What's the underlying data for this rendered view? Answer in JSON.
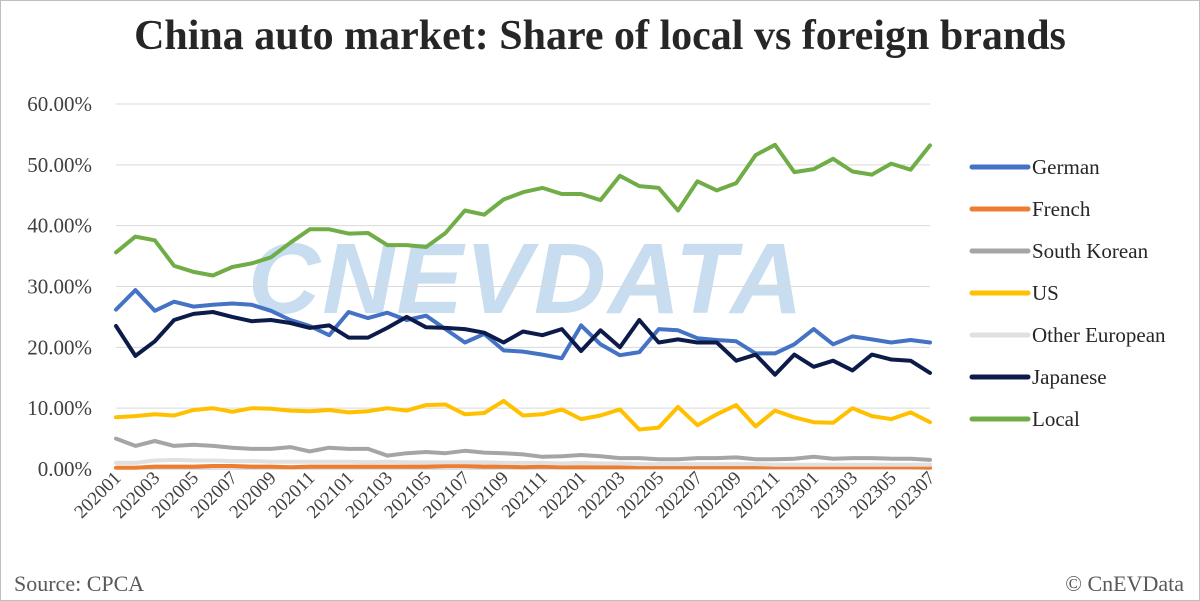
{
  "title": "China auto market: Share of local vs foreign brands",
  "watermark": "CNEVDATA",
  "source": "Source: CPCA",
  "copyright": "© CnEVData",
  "colors": {
    "German": "#4472c4",
    "French": "#ed7d31",
    "South Korean": "#a5a5a5",
    "US": "#ffc000",
    "Other European": "#e0e0e0",
    "Japanese": "#0d1b4a",
    "Local": "#70ad47"
  },
  "chart_data": {
    "type": "line",
    "title": "China auto market: Share of local vs foreign brands",
    "xlabel": "",
    "ylabel": "",
    "ylim": [
      0,
      0.6
    ],
    "yticks": [
      "0.00%",
      "10.00%",
      "20.00%",
      "30.00%",
      "40.00%",
      "50.00%",
      "60.00%"
    ],
    "xtick_labels": [
      "202001",
      "202003",
      "202005",
      "202007",
      "202009",
      "202011",
      "202101",
      "202103",
      "202105",
      "202107",
      "202109",
      "202111",
      "202201",
      "202203",
      "202205",
      "202207",
      "202209",
      "202211",
      "202301",
      "202303",
      "202305",
      "202307"
    ],
    "x": [
      "202001",
      "202002",
      "202003",
      "202004",
      "202005",
      "202006",
      "202007",
      "202008",
      "202009",
      "202010",
      "202011",
      "202012",
      "202101",
      "202102",
      "202103",
      "202104",
      "202105",
      "202106",
      "202107",
      "202108",
      "202109",
      "202110",
      "202111",
      "202112",
      "202201",
      "202202",
      "202203",
      "202204",
      "202205",
      "202206",
      "202207",
      "202208",
      "202209",
      "202210",
      "202211",
      "202212",
      "202301",
      "202302",
      "202303",
      "202304",
      "202305",
      "202306",
      "202307"
    ],
    "grid": true,
    "legend_position": "right",
    "series": [
      {
        "name": "German",
        "values": [
          0.262,
          0.294,
          0.26,
          0.275,
          0.267,
          0.27,
          0.272,
          0.27,
          0.26,
          0.245,
          0.235,
          0.22,
          0.258,
          0.248,
          0.257,
          0.245,
          0.252,
          0.23,
          0.208,
          0.222,
          0.195,
          0.193,
          0.188,
          0.182,
          0.236,
          0.205,
          0.187,
          0.192,
          0.23,
          0.228,
          0.215,
          0.212,
          0.21,
          0.19,
          0.19,
          0.205,
          0.23,
          0.205,
          0.218,
          0.213,
          0.208,
          0.212,
          0.208
        ]
      },
      {
        "name": "French",
        "values": [
          0.002,
          0.002,
          0.004,
          0.004,
          0.004,
          0.005,
          0.005,
          0.004,
          0.004,
          0.003,
          0.004,
          0.004,
          0.004,
          0.004,
          0.004,
          0.004,
          0.004,
          0.005,
          0.005,
          0.004,
          0.004,
          0.003,
          0.004,
          0.003,
          0.003,
          0.003,
          0.003,
          0.003,
          0.003,
          0.003,
          0.003,
          0.003,
          0.003,
          0.003,
          0.003,
          0.003,
          0.003,
          0.003,
          0.003,
          0.003,
          0.003,
          0.003,
          0.002
        ]
      },
      {
        "name": "South Korean",
        "values": [
          0.05,
          0.038,
          0.046,
          0.038,
          0.04,
          0.038,
          0.035,
          0.033,
          0.033,
          0.036,
          0.029,
          0.035,
          0.033,
          0.033,
          0.022,
          0.026,
          0.028,
          0.026,
          0.03,
          0.027,
          0.026,
          0.024,
          0.02,
          0.021,
          0.023,
          0.021,
          0.018,
          0.018,
          0.016,
          0.016,
          0.018,
          0.018,
          0.019,
          0.016,
          0.016,
          0.017,
          0.02,
          0.017,
          0.018,
          0.018,
          0.017,
          0.017,
          0.015
        ]
      },
      {
        "name": "US",
        "values": [
          0.085,
          0.087,
          0.09,
          0.088,
          0.097,
          0.1,
          0.094,
          0.1,
          0.099,
          0.096,
          0.095,
          0.097,
          0.093,
          0.095,
          0.1,
          0.096,
          0.105,
          0.106,
          0.09,
          0.092,
          0.112,
          0.088,
          0.09,
          0.098,
          0.082,
          0.088,
          0.098,
          0.065,
          0.068,
          0.102,
          0.072,
          0.09,
          0.105,
          0.07,
          0.096,
          0.085,
          0.077,
          0.076,
          0.1,
          0.087,
          0.082,
          0.093,
          0.077
        ]
      },
      {
        "name": "Other European",
        "values": [
          0.01,
          0.01,
          0.014,
          0.015,
          0.014,
          0.014,
          0.013,
          0.013,
          0.012,
          0.012,
          0.012,
          0.012,
          0.012,
          0.011,
          0.012,
          0.011,
          0.011,
          0.011,
          0.011,
          0.011,
          0.01,
          0.01,
          0.01,
          0.009,
          0.01,
          0.009,
          0.009,
          0.008,
          0.008,
          0.008,
          0.008,
          0.008,
          0.008,
          0.008,
          0.007,
          0.007,
          0.007,
          0.007,
          0.007,
          0.007,
          0.007,
          0.007,
          0.007
        ]
      },
      {
        "name": "Japanese",
        "values": [
          0.235,
          0.186,
          0.21,
          0.245,
          0.255,
          0.258,
          0.25,
          0.243,
          0.245,
          0.24,
          0.232,
          0.236,
          0.216,
          0.216,
          0.232,
          0.25,
          0.233,
          0.232,
          0.23,
          0.224,
          0.208,
          0.226,
          0.22,
          0.23,
          0.194,
          0.228,
          0.2,
          0.245,
          0.208,
          0.213,
          0.208,
          0.208,
          0.178,
          0.188,
          0.155,
          0.188,
          0.168,
          0.178,
          0.162,
          0.188,
          0.18,
          0.178,
          0.158
        ]
      },
      {
        "name": "Local",
        "values": [
          0.356,
          0.382,
          0.376,
          0.334,
          0.324,
          0.318,
          0.332,
          0.338,
          0.348,
          0.372,
          0.394,
          0.394,
          0.387,
          0.388,
          0.368,
          0.368,
          0.365,
          0.388,
          0.425,
          0.418,
          0.443,
          0.455,
          0.462,
          0.452,
          0.452,
          0.442,
          0.482,
          0.465,
          0.462,
          0.425,
          0.473,
          0.458,
          0.47,
          0.516,
          0.533,
          0.488,
          0.493,
          0.51,
          0.489,
          0.484,
          0.502,
          0.492,
          0.532
        ]
      }
    ]
  }
}
